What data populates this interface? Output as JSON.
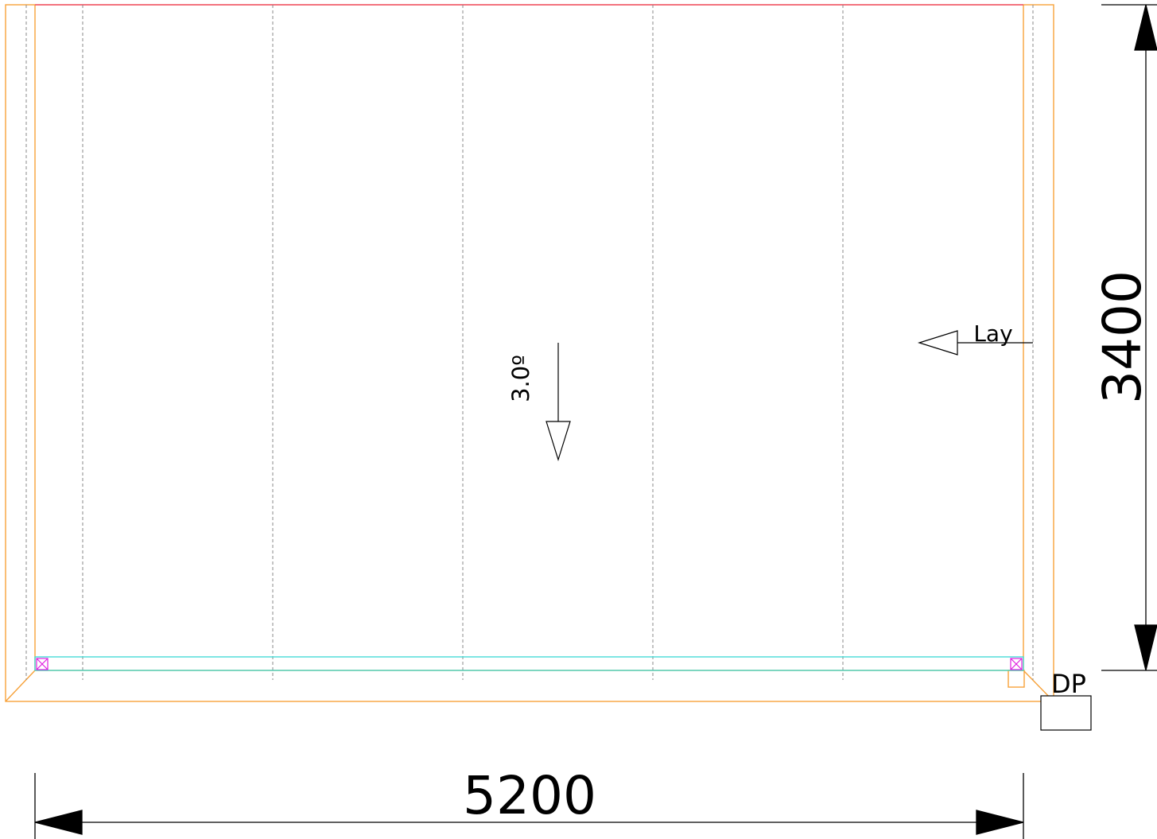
{
  "drawing": {
    "width_dimension": "5200",
    "height_dimension": "3400",
    "slope_label": "3.0º",
    "lay_label": "Lay",
    "downpipe_label": "DP"
  },
  "colors": {
    "frame": "#f7a23a",
    "ridge": "#f0506e",
    "gutter": "#39d9d4",
    "marker": "#e020e0",
    "sheet_lines": "#8a8a8a",
    "ink": "#000000"
  }
}
